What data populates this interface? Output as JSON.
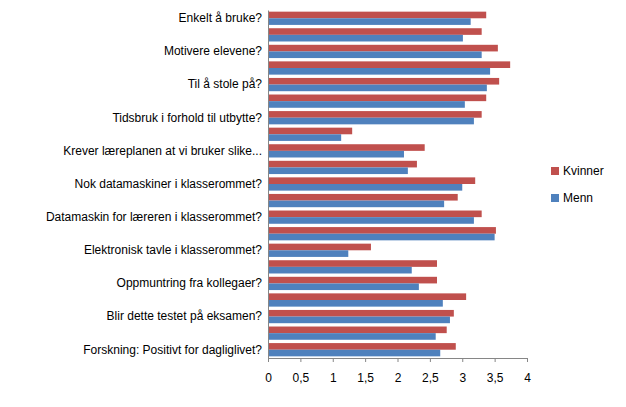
{
  "chart_data": {
    "type": "bar",
    "orientation": "horizontal",
    "categories": [
      "Enkelt å bruke?",
      null,
      "Motivere elevene?",
      null,
      "Til å stole på?",
      null,
      "Tidsbruk i forhold til utbytte?",
      null,
      "Krever læreplanen at vi bruker slike...",
      null,
      "Nok datamaskiner i klasserommet?",
      null,
      "Datamaskin for læreren i klasserommet?",
      null,
      "Elektronisk tavle i klasserommet?",
      null,
      "Oppmuntring fra kollegaer?",
      null,
      "Blir dette testet på eksamen?",
      null,
      "Forskning: Positivt for dagliglivet?"
    ],
    "series": [
      {
        "name": "Kvinner",
        "color": "#c0504d",
        "values": [
          3.37,
          3.3,
          3.55,
          3.74,
          3.57,
          3.37,
          3.3,
          1.3,
          2.42,
          2.3,
          3.2,
          2.93,
          3.3,
          3.52,
          1.59,
          2.61,
          2.61,
          3.06,
          2.87,
          2.76,
          2.9
        ]
      },
      {
        "name": "Menn",
        "color": "#4f81bd",
        "values": [
          3.13,
          3.01,
          3.3,
          3.43,
          3.38,
          3.04,
          3.18,
          1.13,
          2.1,
          2.16,
          3.0,
          2.72,
          3.18,
          3.5,
          1.24,
          2.22,
          2.33,
          2.7,
          2.81,
          2.59,
          2.66
        ]
      }
    ],
    "xlim": [
      0,
      4
    ],
    "xticks": [
      0,
      {
        "value": 0.5,
        "label": "0,5"
      },
      1,
      {
        "value": 1.5,
        "label": "1,5"
      },
      2,
      {
        "value": 2.5,
        "label": "2,5"
      },
      3,
      {
        "value": 3.5,
        "label": "3,5"
      },
      4
    ],
    "grid": false,
    "legend": "right"
  }
}
